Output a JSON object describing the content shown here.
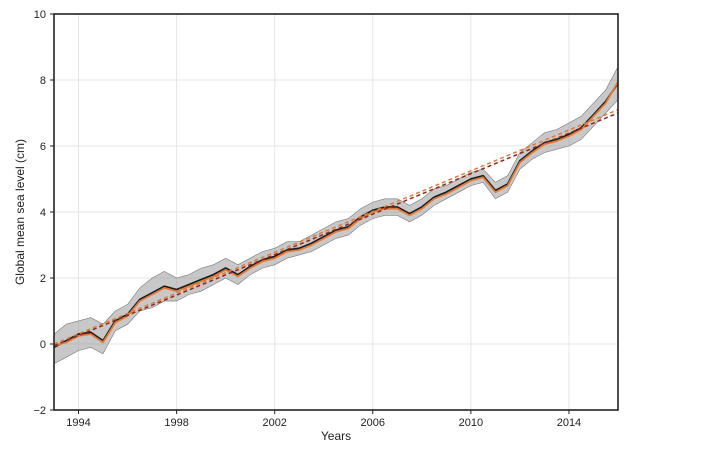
{
  "chart_data": {
    "type": "line",
    "title": "",
    "xlabel": "Years",
    "ylabel": "Global mean sea level (cm)",
    "xlim": [
      1993.0,
      2016.0
    ],
    "ylim": [
      -2,
      10
    ],
    "x_ticks": [
      1994,
      1998,
      2002,
      2006,
      2010,
      2014
    ],
    "x_tick_labels": [
      "1994",
      "1998",
      "2002",
      "2006",
      "2010",
      "2014"
    ],
    "y_ticks": [
      -2,
      0,
      2,
      4,
      6,
      8,
      10
    ],
    "y_tick_labels": [
      "−2",
      "0",
      "2",
      "4",
      "6",
      "8",
      "10"
    ],
    "grid": true,
    "legend": "none",
    "x": [
      1993.0,
      1993.5,
      1994.0,
      1994.5,
      1995.0,
      1995.5,
      1996.0,
      1996.5,
      1997.0,
      1997.5,
      1998.0,
      1998.5,
      1999.0,
      1999.5,
      2000.0,
      2000.5,
      2001.0,
      2001.5,
      2002.0,
      2002.5,
      2003.0,
      2003.5,
      2004.0,
      2004.5,
      2005.0,
      2005.5,
      2006.0,
      2006.5,
      2007.0,
      2007.5,
      2008.0,
      2008.5,
      2009.0,
      2009.5,
      2010.0,
      2010.5,
      2011.0,
      2011.5,
      2012.0,
      2012.5,
      2013.0,
      2013.5,
      2014.0,
      2014.5,
      2015.0,
      2015.5,
      2016.0
    ],
    "band": {
      "color": "#9a9a9a",
      "lower": [
        -0.6,
        -0.4,
        -0.2,
        -0.1,
        -0.3,
        0.4,
        0.6,
        1.0,
        1.1,
        1.3,
        1.3,
        1.5,
        1.6,
        1.8,
        2.0,
        1.8,
        2.1,
        2.3,
        2.4,
        2.6,
        2.7,
        2.8,
        3.0,
        3.2,
        3.3,
        3.6,
        3.8,
        3.9,
        3.9,
        3.7,
        3.9,
        4.2,
        4.4,
        4.6,
        4.8,
        4.9,
        4.4,
        4.6,
        5.3,
        5.6,
        5.8,
        5.9,
        6.0,
        6.2,
        6.6,
        7.0,
        7.4
      ],
      "upper": [
        0.3,
        0.6,
        0.7,
        0.8,
        0.6,
        1.0,
        1.2,
        1.7,
        2.0,
        2.2,
        2.0,
        2.1,
        2.3,
        2.4,
        2.6,
        2.4,
        2.6,
        2.8,
        2.9,
        3.1,
        3.1,
        3.3,
        3.5,
        3.7,
        3.8,
        4.1,
        4.3,
        4.4,
        4.4,
        4.2,
        4.4,
        4.7,
        4.8,
        5.0,
        5.2,
        5.3,
        4.9,
        5.1,
        5.8,
        6.1,
        6.4,
        6.5,
        6.7,
        6.9,
        7.3,
        7.7,
        8.4
      ]
    },
    "series": [
      {
        "color": "#1a1a1a",
        "values": [
          -0.1,
          0.1,
          0.3,
          0.35,
          0.1,
          0.7,
          0.9,
          1.35,
          1.55,
          1.75,
          1.65,
          1.8,
          1.95,
          2.1,
          2.3,
          2.1,
          2.35,
          2.55,
          2.65,
          2.85,
          2.9,
          3.05,
          3.25,
          3.45,
          3.55,
          3.85,
          4.05,
          4.15,
          4.15,
          3.95,
          4.15,
          4.45,
          4.6,
          4.8,
          5.0,
          5.1,
          4.65,
          4.85,
          5.55,
          5.85,
          6.1,
          6.2,
          6.35,
          6.55,
          6.95,
          7.35,
          7.9
        ]
      },
      {
        "color": "#e07b39",
        "values": [
          -0.05,
          0.05,
          0.25,
          0.3,
          0.05,
          0.65,
          0.85,
          1.3,
          1.5,
          1.7,
          1.6,
          1.75,
          1.9,
          2.05,
          2.25,
          2.05,
          2.3,
          2.5,
          2.6,
          2.8,
          2.85,
          3.0,
          3.2,
          3.4,
          3.5,
          3.8,
          4.0,
          4.1,
          4.1,
          3.9,
          4.1,
          4.4,
          4.55,
          4.75,
          4.95,
          5.05,
          4.6,
          4.8,
          5.5,
          5.8,
          6.05,
          6.15,
          6.3,
          6.5,
          6.9,
          7.3,
          7.95
        ]
      }
    ],
    "trend_lines": [
      {
        "color": "#8b2a1f",
        "dashed": true,
        "x": [
          1993.0,
          2016.0
        ],
        "y": [
          -0.05,
          7.0
        ]
      },
      {
        "color": "#e07b39",
        "dashed": true,
        "x": [
          1993.0,
          2016.0
        ],
        "y": [
          0.0,
          7.1
        ]
      }
    ]
  }
}
